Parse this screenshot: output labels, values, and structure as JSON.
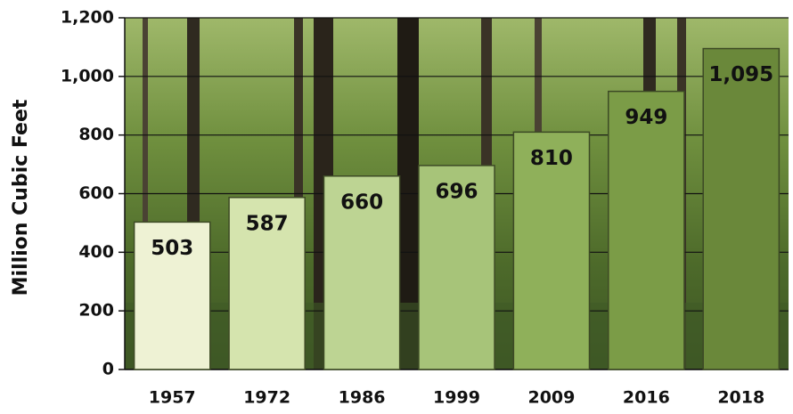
{
  "chart_data": {
    "type": "bar",
    "y_label": "Million Cubic Feet",
    "categories": [
      "1957",
      "1972",
      "1986",
      "1999",
      "2009",
      "2016",
      "2018"
    ],
    "values": [
      503,
      587,
      660,
      696,
      810,
      949,
      1095
    ],
    "value_labels": [
      "503",
      "587",
      "660",
      "696",
      "810",
      "949",
      "1,095"
    ],
    "colors": [
      "#eef2d4",
      "#d5e4ae",
      "#bdd493",
      "#a7c479",
      "#8fb05a",
      "#7b9c47",
      "#6a883a"
    ],
    "ylim": [
      0,
      1200
    ],
    "yticks": [
      0,
      200,
      400,
      600,
      800,
      {
        "value": 1000,
        "label": "1,000"
      },
      {
        "value": 1200,
        "label": "1,200"
      }
    ],
    "grid": true
  }
}
